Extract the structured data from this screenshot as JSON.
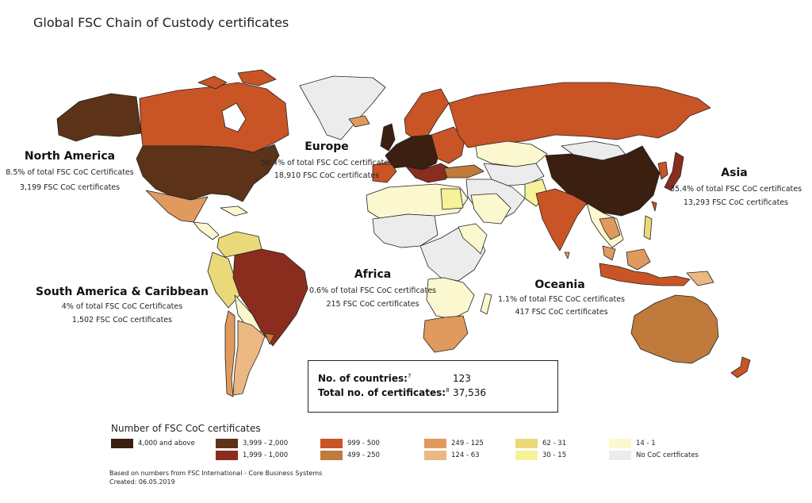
{
  "title": "Global FSC Chain of Custody certificates",
  "regions": {
    "north_america": {
      "name": "North America",
      "share": "8.5% of total FSC CoC Certificates",
      "count": "3,199 FSC CoC certificates"
    },
    "europe": {
      "name": "Europe",
      "share": "50.4% of total FSC CoC certificates",
      "count": "18,910 FSC CoC certificates"
    },
    "asia": {
      "name": "Asia",
      "share": "35.4% of total FSC CoC certificates",
      "count": "13,293 FSC CoC certificates"
    },
    "south_america": {
      "name": "South America & Caribbean",
      "share": "4% of total FSC CoC Certificates",
      "count": "1,502 FSC CoC certificates"
    },
    "africa": {
      "name": "Africa",
      "share": "0.6% of total FSC CoC certificates",
      "count": "215 FSC CoC certificates"
    },
    "oceania": {
      "name": "Oceania",
      "share": "1.1% of total FSC CoC certificates",
      "count": "417 FSC CoC certificates"
    }
  },
  "summary": {
    "countries_label": "No. of countries:",
    "countries_sup": "7",
    "countries_value": "123",
    "certs_label": "Total no. of certificates:",
    "certs_sup": "8",
    "certs_value": "37,536"
  },
  "legend": {
    "title": "Number of FSC CoC certificates",
    "items": [
      {
        "label": "4,000 and above",
        "color": "#3b1f10"
      },
      {
        "label": "3,999 - 2,000",
        "color": "#5c3318"
      },
      {
        "label": "1,999 - 1,000",
        "color": "#8b2d1e"
      },
      {
        "label": "999 - 500",
        "color": "#c95425"
      },
      {
        "label": "499 - 250",
        "color": "#c07a3c"
      },
      {
        "label": "249 - 125",
        "color": "#e09a5e"
      },
      {
        "label": "124 - 63",
        "color": "#ebb883"
      },
      {
        "label": "62 - 31",
        "color": "#e9d978"
      },
      {
        "label": "30 - 15",
        "color": "#f6f29a"
      },
      {
        "label": "14 - 1",
        "color": "#fbf7cf"
      },
      {
        "label": "No CoC certficates",
        "color": "#ececec"
      }
    ]
  },
  "notes": {
    "source": "Based on numbers from FSC International - Core Business Systems",
    "created": "Created: 06.05.2019"
  }
}
